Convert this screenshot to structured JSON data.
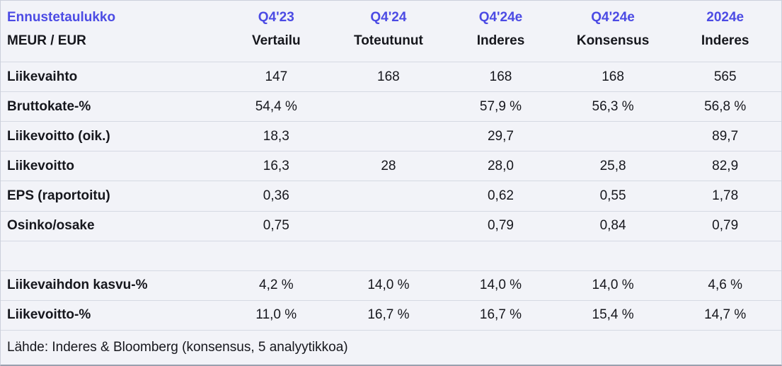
{
  "chart_data": {
    "type": "table",
    "title": "Ennustetaulukko",
    "unit_label": "MEUR / EUR",
    "column_headers": [
      {
        "period": "Q4'23",
        "source": "Vertailu"
      },
      {
        "period": "Q4'24",
        "source": "Toteutunut"
      },
      {
        "period": "Q4'24e",
        "source": "Inderes"
      },
      {
        "period": "Q4'24e",
        "source": "Konsensus"
      },
      {
        "period": "2024e",
        "source": "Inderes"
      }
    ],
    "rows": [
      {
        "label": "Liikevaihto",
        "values": [
          "147",
          "168",
          "168",
          "168",
          "565"
        ]
      },
      {
        "label": "Bruttokate-%",
        "values": [
          "54,4 %",
          "",
          "57,9 %",
          "56,3 %",
          "56,8 %"
        ]
      },
      {
        "label": "Liikevoitto (oik.)",
        "values": [
          "18,3",
          "",
          "29,7",
          "",
          "89,7"
        ]
      },
      {
        "label": "Liikevoitto",
        "values": [
          "16,3",
          "28",
          "28,0",
          "25,8",
          "82,9"
        ]
      },
      {
        "label": "EPS (raportoitu)",
        "values": [
          "0,36",
          "",
          "0,62",
          "0,55",
          "1,78"
        ]
      },
      {
        "label": "Osinko/osake",
        "values": [
          "0,75",
          "",
          "0,79",
          "0,84",
          "0,79"
        ]
      },
      {
        "label": "",
        "values": [
          "",
          "",
          "",
          "",
          ""
        ],
        "spacer": true
      },
      {
        "label": "Liikevaihdon kasvu-%",
        "values": [
          "4,2 %",
          "14,0 %",
          "14,0 %",
          "14,0 %",
          "4,6 %"
        ]
      },
      {
        "label": "Liikevoitto-%",
        "values": [
          "11,0 %",
          "16,7 %",
          "16,7 %",
          "15,4 %",
          "14,7 %"
        ]
      }
    ],
    "footer": "Lähde: Inderes & Bloomberg  (konsensus, 5 analyytikkoa)",
    "colors": {
      "accent": "#4c4be4",
      "background": "#f2f3f8",
      "separator": "#d5d9e3",
      "text": "#16171d"
    }
  }
}
